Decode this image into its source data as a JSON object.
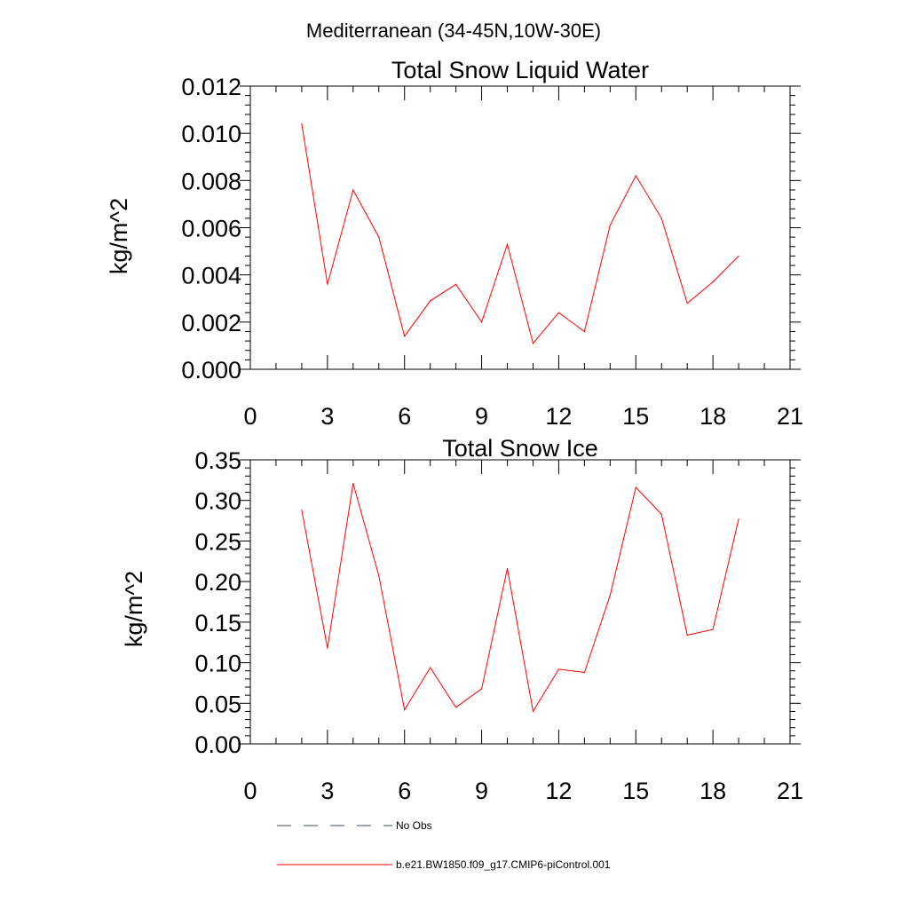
{
  "figure_title": "Mediterranean (34-45N,10W-30E)",
  "legend": [
    {
      "label": "No Obs",
      "style": "dashed",
      "color": "#3b4a73"
    },
    {
      "label": "b.e21.BW1850.f09_g17.CMIP6-piControl.001",
      "style": "solid",
      "color": "#ff0000"
    }
  ],
  "chart_data": [
    {
      "type": "line",
      "title": "Total Snow Liquid Water",
      "xlabel": "",
      "ylabel": "kg/m^2",
      "xlim": [
        0,
        21
      ],
      "ylim": [
        0,
        0.012
      ],
      "x_ticks": [
        0,
        3,
        6,
        9,
        12,
        15,
        18,
        21
      ],
      "x_tick_labels": [
        "0",
        "3",
        "6",
        "9",
        "12",
        "15",
        "18",
        "21"
      ],
      "y_ticks": [
        0,
        0.002,
        0.004,
        0.006,
        0.008,
        0.01,
        0.012
      ],
      "y_tick_labels": [
        "0.000",
        "0.002",
        "0.004",
        "0.006",
        "0.008",
        "0.010",
        "0.012"
      ],
      "series": [
        {
          "name": "b.e21.BW1850.f09_g17.CMIP6-piControl.001",
          "color": "#ff0000",
          "x": [
            2,
            3,
            4,
            5,
            6,
            7,
            8,
            9,
            10,
            11,
            12,
            13,
            14,
            15,
            16,
            17,
            18,
            19
          ],
          "values": [
            0.0104,
            0.0036,
            0.0076,
            0.0056,
            0.0014,
            0.0029,
            0.0036,
            0.002,
            0.0053,
            0.0011,
            0.0024,
            0.0016,
            0.0061,
            0.0082,
            0.0064,
            0.0028,
            0.0037,
            0.0048
          ]
        }
      ]
    },
    {
      "type": "line",
      "title": "Total Snow Ice",
      "xlabel": "",
      "ylabel": "kg/m^2",
      "xlim": [
        0,
        21
      ],
      "ylim": [
        0,
        0.35
      ],
      "x_ticks": [
        0,
        3,
        6,
        9,
        12,
        15,
        18,
        21
      ],
      "x_tick_labels": [
        "0",
        "3",
        "6",
        "9",
        "12",
        "15",
        "18",
        "21"
      ],
      "y_ticks": [
        0,
        0.05,
        0.1,
        0.15,
        0.2,
        0.25,
        0.3,
        0.35
      ],
      "y_tick_labels": [
        "0.00",
        "0.05",
        "0.10",
        "0.15",
        "0.20",
        "0.25",
        "0.30",
        "0.35"
      ],
      "series": [
        {
          "name": "b.e21.BW1850.f09_g17.CMIP6-piControl.001",
          "color": "#ff0000",
          "x": [
            2,
            3,
            4,
            5,
            6,
            7,
            8,
            9,
            10,
            11,
            12,
            13,
            14,
            15,
            16,
            17,
            18,
            19
          ],
          "values": [
            0.288,
            0.118,
            0.321,
            0.207,
            0.042,
            0.094,
            0.045,
            0.068,
            0.216,
            0.04,
            0.092,
            0.088,
            0.183,
            0.316,
            0.283,
            0.134,
            0.141,
            0.277
          ]
        }
      ]
    }
  ]
}
